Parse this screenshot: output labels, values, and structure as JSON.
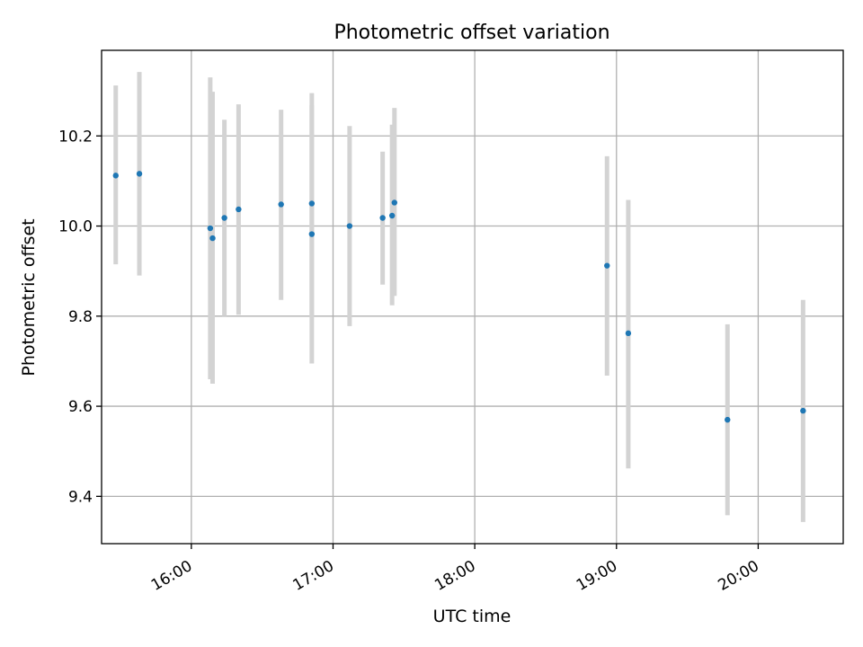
{
  "chart_data": {
    "type": "scatter",
    "title": "Photometric offset variation",
    "xlabel": "UTC time",
    "ylabel": "Photometric offset",
    "x_axis_kind": "time",
    "xlim": [
      "15:22",
      "20:36"
    ],
    "ylim": [
      9.295,
      10.39
    ],
    "xticks": [
      "16:00",
      "17:00",
      "18:00",
      "19:00",
      "20:00"
    ],
    "yticks": [
      9.4,
      9.6,
      9.8,
      10.0,
      10.2
    ],
    "grid": true,
    "legend": "none",
    "points": [
      {
        "x": "15:28",
        "y": 10.112,
        "ylow": 9.915,
        "yhigh": 10.312
      },
      {
        "x": "15:38",
        "y": 10.116,
        "ylow": 9.89,
        "yhigh": 10.342
      },
      {
        "x": "16:08",
        "y": 9.995,
        "ylow": 9.66,
        "yhigh": 10.33
      },
      {
        "x": "16:09",
        "y": 9.973,
        "ylow": 9.65,
        "yhigh": 10.298
      },
      {
        "x": "16:14",
        "y": 10.018,
        "ylow": 9.8,
        "yhigh": 10.236
      },
      {
        "x": "16:20",
        "y": 10.037,
        "ylow": 9.803,
        "yhigh": 10.27
      },
      {
        "x": "16:38",
        "y": 10.048,
        "ylow": 9.836,
        "yhigh": 10.258
      },
      {
        "x": "16:51",
        "y": 10.05,
        "ylow": 9.8,
        "yhigh": 10.295
      },
      {
        "x": "16:51",
        "y": 9.982,
        "ylow": 9.695,
        "yhigh": 10.268
      },
      {
        "x": "17:07",
        "y": 10.0,
        "ylow": 9.778,
        "yhigh": 10.222
      },
      {
        "x": "17:21",
        "y": 10.018,
        "ylow": 9.87,
        "yhigh": 10.165
      },
      {
        "x": "17:25",
        "y": 10.023,
        "ylow": 9.824,
        "yhigh": 10.225
      },
      {
        "x": "17:26",
        "y": 10.052,
        "ylow": 9.845,
        "yhigh": 10.262
      },
      {
        "x": "18:56",
        "y": 9.912,
        "ylow": 9.668,
        "yhigh": 10.155
      },
      {
        "x": "19:05",
        "y": 9.762,
        "ylow": 9.462,
        "yhigh": 10.058
      },
      {
        "x": "19:47",
        "y": 9.57,
        "ylow": 9.358,
        "yhigh": 9.782
      },
      {
        "x": "20:19",
        "y": 9.59,
        "ylow": 9.343,
        "yhigh": 9.836
      }
    ],
    "colors": {
      "marker": "#1f77b4",
      "errorbar": "#d3d3d3",
      "grid": "#b0b0b0",
      "axes": "#000000"
    }
  }
}
